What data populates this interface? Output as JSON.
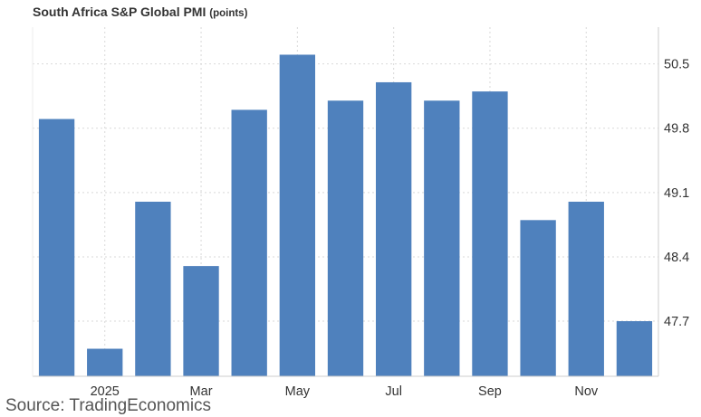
{
  "title": "South Africa S&P Global PMI",
  "title_unit": "(points)",
  "source": "Source: TradingEconomics",
  "colors": {
    "bar": "#4f81bd",
    "grid": "#d9d9d9",
    "axis": "#cccccc",
    "text": "#333333"
  },
  "chart_data": {
    "type": "bar",
    "title": "South Africa S&P Global PMI",
    "unit": "(points)",
    "categories": [
      "",
      "2025",
      "",
      "Mar",
      "",
      "May",
      "",
      "Jul",
      "",
      "Sep",
      "",
      "Nov",
      ""
    ],
    "values": [
      49.9,
      47.4,
      49.0,
      48.3,
      50.0,
      50.6,
      50.1,
      50.3,
      50.1,
      50.2,
      48.8,
      49.0,
      47.7
    ],
    "x_tick_labels": [
      "2025",
      "Mar",
      "May",
      "Jul",
      "Sep",
      "Nov"
    ],
    "y_ticks": [
      47.7,
      48.4,
      49.1,
      49.8,
      50.5
    ],
    "y_tick_labels": [
      "47.7",
      "48.4",
      "49.1",
      "49.8",
      "50.5"
    ],
    "ylim": [
      47.1,
      50.9
    ],
    "y_axis_side": "right",
    "grid": true,
    "legend": "none"
  }
}
